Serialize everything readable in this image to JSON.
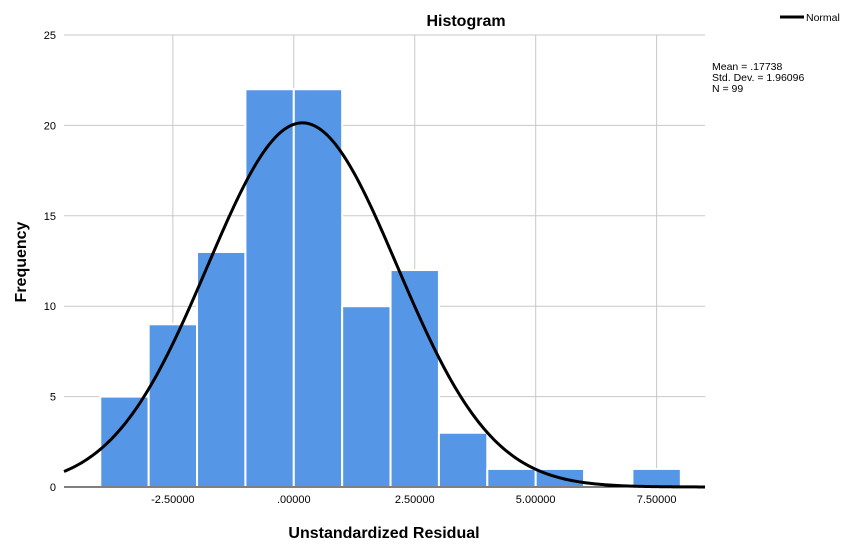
{
  "chart_data": {
    "type": "histogram",
    "title": "Histogram",
    "xlabel": "Unstandardized Residual",
    "ylabel": "Frequency",
    "xlim": [
      -4.75,
      8.5
    ],
    "ylim": [
      0,
      25
    ],
    "x_ticks": [
      -2.5,
      0,
      2.5,
      5,
      7.5
    ],
    "x_tick_labels": [
      "-2.50000",
      ".00000",
      "2.50000",
      "5.00000",
      "7.50000"
    ],
    "y_ticks": [
      0,
      5,
      10,
      15,
      20,
      25
    ],
    "y_tick_labels": [
      "0",
      "5",
      "10",
      "15",
      "20",
      "25"
    ],
    "grid": true,
    "bin_width": 1,
    "bars": [
      {
        "x0": -4,
        "x1": -3,
        "count": 5
      },
      {
        "x0": -3,
        "x1": -2,
        "count": 9
      },
      {
        "x0": -2,
        "x1": -1,
        "count": 13
      },
      {
        "x0": -1,
        "x1": 0,
        "count": 22
      },
      {
        "x0": 0,
        "x1": 1,
        "count": 22
      },
      {
        "x0": 1,
        "x1": 2,
        "count": 10
      },
      {
        "x0": 2,
        "x1": 3,
        "count": 12
      },
      {
        "x0": 3,
        "x1": 4,
        "count": 3
      },
      {
        "x0": 4,
        "x1": 5,
        "count": 1
      },
      {
        "x0": 5,
        "x1": 6,
        "count": 1
      },
      {
        "x0": 6,
        "x1": 7,
        "count": 0
      },
      {
        "x0": 7,
        "x1": 8,
        "count": 1
      }
    ],
    "normal_curve": {
      "mean": 0.17738,
      "std_dev": 1.96096,
      "n": 99
    },
    "legend": {
      "label": "Normal",
      "position": "top-right"
    },
    "stats_lines": [
      "Mean = .17738",
      "Std. Dev. = 1.96096",
      "N = 99"
    ],
    "colors": {
      "bar": "#5596e6",
      "bar_edge": "#ffffff",
      "curve": "#000000",
      "grid": "#c8c8c8",
      "axis": "#000000"
    }
  }
}
